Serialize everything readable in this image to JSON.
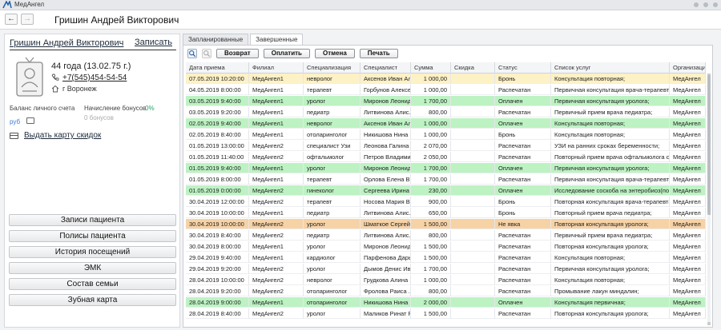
{
  "app": {
    "name": "МедАнгел"
  },
  "header": {
    "title": "Гришин Андрей Викторович",
    "back_icon": "←",
    "forward_icon": "→"
  },
  "patient": {
    "name": "Гришин Андрей Викторович",
    "record_label": "Записать",
    "age": "44 года  (13.02.75 г.)",
    "phone": "+7(545)454-54-54",
    "city": "г Воронеж",
    "balance_label": "Баланс личного счета",
    "bonus_label": "Начисление бонусов",
    "bonus_percent": "0%",
    "currency": "руб",
    "bonus_value": "0 бонусов",
    "card_label": "Выдать карту скидок"
  },
  "menu": [
    "Записи пациента",
    "Полисы пациента",
    "История посещений",
    "ЭМК",
    "Состав семьи",
    "Зубная карта"
  ],
  "tabs": [
    {
      "label": "Запланированные",
      "active": false
    },
    {
      "label": "Завершенные",
      "active": true
    }
  ],
  "toolbar": {
    "return_label": "Возврат",
    "pay_label": "Оплатить",
    "cancel_label": "Отмена",
    "print_label": "Печать"
  },
  "colors": {
    "yellow": "#fdf1c6",
    "green": "#bdf2c3",
    "orange": "#f7d2a5"
  },
  "table": {
    "columns": [
      "Дата приема",
      "Филиал",
      "Специализация",
      "Специалист",
      "Сумма",
      "Скидка",
      "Статус",
      "Список услуг",
      "Организация"
    ],
    "rows": [
      {
        "c": [
          "07.05.2019 10:20:00",
          "МедАнгел1",
          "невролог",
          "Аксенов Иван Ал...",
          "1 000,00",
          "",
          "Бронь",
          "Консультация повторная;",
          "МедАнгел"
        ],
        "hl": "yellow"
      },
      {
        "c": [
          "04.05.2019 8:00:00",
          "МедАнгел1",
          "терапевт",
          "Горбунов Алексей...",
          "1 000,00",
          "",
          "Распечатан",
          "Первичная консультация врача-терапевта;",
          "МедАнгел"
        ],
        "hl": ""
      },
      {
        "c": [
          "03.05.2019 9:40:00",
          "МедАнгел1",
          "уролог",
          "Миронов Леонид...",
          "1 700,00",
          "",
          "Оплачен",
          "Первичная консультация уролога;",
          "МедАнгел"
        ],
        "hl": "green"
      },
      {
        "c": [
          "03.05.2019 9:20:00",
          "МедАнгел1",
          "педиатр",
          "Литвинова Алис...",
          "800,00",
          "",
          "Распечатан",
          "Первичный прием врача педиатра;",
          "МедАнгел"
        ],
        "hl": ""
      },
      {
        "c": [
          "02.05.2019 9:40:00",
          "МедАнгел1",
          "невролог",
          "Аксенов Иван Ал...",
          "1 000,00",
          "",
          "Оплачен",
          "Консультация повторная;",
          "МедАнгел"
        ],
        "hl": "green"
      },
      {
        "c": [
          "02.05.2019 8:40:00",
          "МедАнгел1",
          "отоларинголог",
          "Никишова Нина ...",
          "1 000,00",
          "",
          "Бронь",
          "Консультация повторная;",
          "МедАнгел"
        ],
        "hl": ""
      },
      {
        "c": [
          "01.05.2019 13:00:00",
          "МедАнгел2",
          "специалист Узи",
          "Леонова Галина ...",
          "2 070,00",
          "",
          "Распечатан",
          "УЗИ на ранних сроках беременности;",
          "МедАнгел"
        ],
        "hl": ""
      },
      {
        "c": [
          "01.05.2019 11:40:00",
          "МедАнгел2",
          "офтальмолог",
          "Петров Владими...",
          "2 050,00",
          "",
          "Распечатан",
          "Повторный прием врача офтальмолога с п...",
          "МедАнгел"
        ],
        "hl": ""
      },
      {
        "c": [
          "01.05.2019 9:40:00",
          "МедАнгел1",
          "уролог",
          "Миронов Леонид...",
          "1 700,00",
          "",
          "Оплачен",
          "Первичная консультация уролога;",
          "МедАнгел"
        ],
        "hl": "green"
      },
      {
        "c": [
          "01.05.2019 8:00:00",
          "МедАнгел1",
          "терапевт",
          "Орлова Елена В...",
          "1 700,00",
          "",
          "Распечатан",
          "Первичная консультация врача-терапевта;",
          "МедАнгел"
        ],
        "hl": ""
      },
      {
        "c": [
          "01.05.2019 0:00:00",
          "МедАнгел2",
          "гинеколог",
          "Сергеева Ирина ...",
          "230,00",
          "",
          "Оплачен",
          "Исследование соскоба на энтеробиоз(по Р...",
          "МедАнгел"
        ],
        "hl": "green"
      },
      {
        "c": [
          "30.04.2019 12:00:00",
          "МедАнгел2",
          "терапевт",
          "Носова Мария В...",
          "900,00",
          "",
          "Бронь",
          "Повторная консультация врача-терапевта;",
          "МедАнгел"
        ],
        "hl": ""
      },
      {
        "c": [
          "30.04.2019 10:00:00",
          "МедАнгел1",
          "педиатр",
          "Литвинова Алис...",
          "650,00",
          "",
          "Бронь",
          "Повторный прием врача педиатра;",
          "МедАнгел"
        ],
        "hl": ""
      },
      {
        "c": [
          "30.04.2019 10:00:00",
          "МедАнгел2",
          "уролог",
          "Шматкое Сергей...",
          "1 500,00",
          "",
          "Не явка",
          "Повторная консультация уролога;",
          "МедАнгел"
        ],
        "hl": "orange"
      },
      {
        "c": [
          "30.04.2019 8:40:00",
          "МедАнгел2",
          "педиатр",
          "Литвинова Алис...",
          "800,00",
          "",
          "Распечатан",
          "Первичный прием врача педиатра;",
          "МедАнгел"
        ],
        "hl": ""
      },
      {
        "c": [
          "30.04.2019 8:00:00",
          "МедАнгел1",
          "уролог",
          "Миронов Леонид...",
          "1 500,00",
          "",
          "Распечатан",
          "Повторная консультация уролога;",
          "МедАнгел"
        ],
        "hl": ""
      },
      {
        "c": [
          "29.04.2019 9:40:00",
          "МедАнгел1",
          "кардиолог",
          "Парфенова Дарь...",
          "1 500,00",
          "",
          "Распечатан",
          "Консультация повторная;",
          "МедАнгел"
        ],
        "hl": ""
      },
      {
        "c": [
          "29.04.2019 9:20:00",
          "МедАнгел2",
          "уролог",
          "Дымов Денис Ив...",
          "1 700,00",
          "",
          "Распечатан",
          "Первичная консультация уролога;",
          "МедАнгел"
        ],
        "hl": ""
      },
      {
        "c": [
          "28.04.2019 10:00:00",
          "МедАнгел2",
          "невролог",
          "Грудкова Алина ...",
          "1 000,00",
          "",
          "Распечатан",
          "Консультация повторная;",
          "МедАнгел"
        ],
        "hl": ""
      },
      {
        "c": [
          "28.04.2019 9:20:00",
          "МедАнгел2",
          "отоларинголог",
          "Фролова Раиса ...",
          "800,00",
          "",
          "Распечатан",
          "Промывание лакун миндалин;",
          "МедАнгел"
        ],
        "hl": ""
      },
      {
        "c": [
          "28.04.2019 9:00:00",
          "МедАнгел1",
          "отоларинголог",
          "Никишова Нина ...",
          "2 000,00",
          "",
          "Оплачен",
          "Консультация первичная;",
          "МедАнгел"
        ],
        "hl": "green"
      },
      {
        "c": [
          "28.04.2019 8:40:00",
          "МедАнгел2",
          "уролог",
          "Маликов Ринат Р...",
          "1 500,00",
          "",
          "Распечатан",
          "Повторная консультация уролога;",
          "МедАнгел"
        ],
        "hl": ""
      }
    ]
  }
}
